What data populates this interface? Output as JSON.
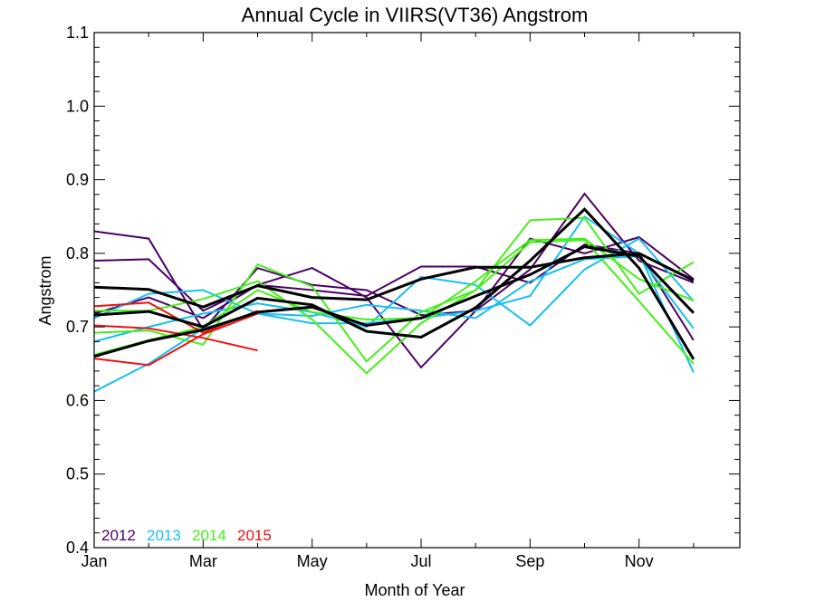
{
  "chart_data": {
    "type": "line",
    "title": "Annual Cycle in VIIRS(VT36) Angstrom",
    "xlabel": "Month of Year",
    "ylabel": "Angstrom",
    "xlim": [
      1,
      12.85
    ],
    "ylim": [
      0.4,
      1.1
    ],
    "x_ticks": [
      1,
      3,
      5,
      7,
      9,
      11
    ],
    "x_tick_labels": [
      "Jan",
      "Mar",
      "May",
      "Jul",
      "Sep",
      "Nov"
    ],
    "y_ticks": [
      0.4,
      0.5,
      0.6,
      0.7,
      0.8,
      0.9,
      1.0,
      1.1
    ],
    "y_tick_labels": [
      "0.4",
      "0.5",
      "0.6",
      "0.7",
      "0.8",
      "0.9",
      "1.0",
      "1.1"
    ],
    "legend": [
      {
        "label": "2012",
        "color": "#4b0066"
      },
      {
        "label": "2013",
        "color": "#18bff0"
      },
      {
        "label": "2014",
        "color": "#44f018"
      },
      {
        "label": "2015",
        "color": "#f01010"
      }
    ],
    "legend_placement": "bottom-left",
    "grid": false,
    "series": [
      {
        "group": "2012",
        "color": "#4b0066",
        "width": 2,
        "x": [
          1,
          2,
          3,
          4,
          5,
          6,
          7,
          8,
          9,
          10,
          11,
          12
        ],
        "y": [
          0.83,
          0.82,
          0.696,
          0.78,
          0.757,
          0.75,
          0.716,
          0.722,
          0.778,
          0.881,
          0.79,
          0.76
        ]
      },
      {
        "group": "2012",
        "color": "#4b0066",
        "width": 2,
        "x": [
          1,
          2,
          3,
          4,
          5,
          6,
          7,
          8,
          9,
          10,
          11,
          12
        ],
        "y": [
          0.79,
          0.792,
          0.722,
          0.757,
          0.78,
          0.74,
          0.645,
          0.722,
          0.82,
          0.8,
          0.822,
          0.765
        ]
      },
      {
        "group": "2012",
        "color": "#4b0066",
        "width": 2,
        "x": [
          1,
          2,
          3,
          4,
          5,
          6,
          7,
          8,
          9,
          10,
          11,
          12
        ],
        "y": [
          0.718,
          0.74,
          0.712,
          0.757,
          0.75,
          0.742,
          0.782,
          0.782,
          0.76,
          0.812,
          0.8,
          0.682
        ]
      },
      {
        "group": "2013",
        "color": "#18bff0",
        "width": 2,
        "x": [
          1,
          2,
          3,
          4,
          5,
          6,
          7,
          8,
          9,
          10,
          11,
          12
        ],
        "y": [
          0.612,
          0.65,
          0.698,
          0.718,
          0.705,
          0.705,
          0.712,
          0.722,
          0.742,
          0.85,
          0.8,
          0.638
        ]
      },
      {
        "group": "2013",
        "color": "#18bff0",
        "width": 2,
        "x": [
          1,
          2,
          3,
          4,
          5,
          6,
          7,
          8,
          9,
          10,
          11,
          12
        ],
        "y": [
          0.68,
          0.7,
          0.718,
          0.732,
          0.72,
          0.7,
          0.768,
          0.757,
          0.702,
          0.778,
          0.82,
          0.735
        ]
      },
      {
        "group": "2013",
        "color": "#18bff0",
        "width": 2,
        "x": [
          1,
          2,
          3,
          4,
          5,
          6,
          7,
          8,
          9,
          10,
          11,
          12
        ],
        "y": [
          0.712,
          0.745,
          0.75,
          0.718,
          0.715,
          0.73,
          0.722,
          0.712,
          0.762,
          0.792,
          0.796,
          0.698
        ]
      },
      {
        "group": "2014",
        "color": "#44f018",
        "width": 2,
        "x": [
          1,
          2,
          3,
          4,
          5,
          6,
          7,
          8,
          9,
          10,
          11,
          12
        ],
        "y": [
          0.692,
          0.695,
          0.676,
          0.785,
          0.755,
          0.653,
          0.72,
          0.75,
          0.845,
          0.848,
          0.745,
          0.788
        ]
      },
      {
        "group": "2014",
        "color": "#44f018",
        "width": 2,
        "x": [
          1,
          2,
          3,
          4,
          5,
          6,
          7,
          8,
          9,
          10,
          11,
          12
        ],
        "y": [
          0.722,
          0.722,
          0.738,
          0.762,
          0.71,
          0.637,
          0.705,
          0.75,
          0.815,
          0.818,
          0.735,
          0.65
        ]
      },
      {
        "group": "2014",
        "color": "#44f018",
        "width": 2,
        "x": [
          1,
          2,
          3,
          4,
          5,
          6,
          7,
          8,
          9,
          10,
          11,
          12
        ],
        "y": [
          0.662,
          0.682,
          0.7,
          0.75,
          0.72,
          0.71,
          0.712,
          0.762,
          0.818,
          0.82,
          0.765,
          0.736
        ]
      },
      {
        "group": "2015",
        "color": "#f01010",
        "width": 2,
        "x": [
          1,
          2,
          3,
          4
        ],
        "y": [
          0.728,
          0.733,
          0.692,
          0.722
        ]
      },
      {
        "group": "2015",
        "color": "#f01010",
        "width": 2,
        "x": [
          1,
          2,
          3,
          4
        ],
        "y": [
          0.702,
          0.698,
          0.685,
          0.668
        ]
      },
      {
        "group": "2015",
        "color": "#f01010",
        "width": 2,
        "x": [
          1,
          2,
          3,
          4
        ],
        "y": [
          0.657,
          0.648,
          0.69,
          0.718
        ]
      },
      {
        "group": "mean",
        "color": "#000000",
        "width": 3,
        "x": [
          1,
          2,
          3,
          4,
          5,
          6,
          7,
          8,
          9,
          10,
          11,
          12
        ],
        "y": [
          0.754,
          0.751,
          0.727,
          0.756,
          0.74,
          0.737,
          0.765,
          0.781,
          0.781,
          0.794,
          0.8,
          0.763
        ]
      },
      {
        "group": "mean",
        "color": "#000000",
        "width": 3,
        "x": [
          1,
          2,
          3,
          4,
          5,
          6,
          7,
          8,
          9,
          10,
          11,
          12
        ],
        "y": [
          0.716,
          0.721,
          0.7,
          0.739,
          0.73,
          0.694,
          0.686,
          0.726,
          0.79,
          0.86,
          0.78,
          0.656
        ]
      },
      {
        "group": "mean",
        "color": "#000000",
        "width": 3,
        "x": [
          1,
          2,
          3,
          4,
          5,
          6,
          7,
          8,
          9,
          10,
          11,
          12
        ],
        "y": [
          0.66,
          0.681,
          0.696,
          0.72,
          0.727,
          0.702,
          0.712,
          0.742,
          0.771,
          0.809,
          0.796,
          0.719
        ]
      }
    ]
  }
}
